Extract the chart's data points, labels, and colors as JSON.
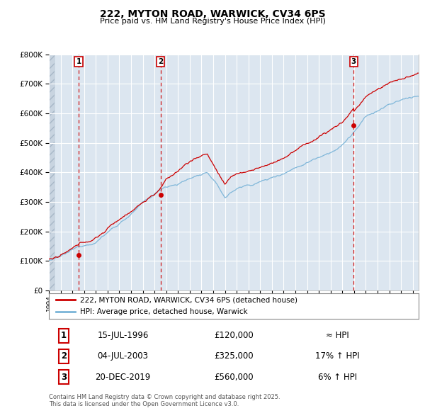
{
  "title": "222, MYTON ROAD, WARWICK, CV34 6PS",
  "subtitle": "Price paid vs. HM Land Registry's House Price Index (HPI)",
  "legend_label_red": "222, MYTON ROAD, WARWICK, CV34 6PS (detached house)",
  "legend_label_blue": "HPI: Average price, detached house, Warwick",
  "footer": "Contains HM Land Registry data © Crown copyright and database right 2025.\nThis data is licensed under the Open Government Licence v3.0.",
  "transactions": [
    {
      "num": 1,
      "date": "15-JUL-1996",
      "price": 120000,
      "vs_hpi": "≈ HPI",
      "year": 1996.54
    },
    {
      "num": 2,
      "date": "04-JUL-2003",
      "price": 325000,
      "vs_hpi": "17% ↑ HPI",
      "year": 2003.51
    },
    {
      "num": 3,
      "date": "20-DEC-2019",
      "price": 560000,
      "vs_hpi": "6% ↑ HPI",
      "year": 2019.97
    }
  ],
  "ylim": [
    0,
    800000
  ],
  "xlim_start": 1994.0,
  "xlim_end": 2025.5,
  "background_color": "#ffffff",
  "plot_bg_color": "#dce6f0",
  "grid_color": "#ffffff",
  "red_color": "#cc0000",
  "blue_color": "#7ab4d8",
  "red_dashed_color": "#cc0000",
  "hatch_color": "#c0c8d8"
}
